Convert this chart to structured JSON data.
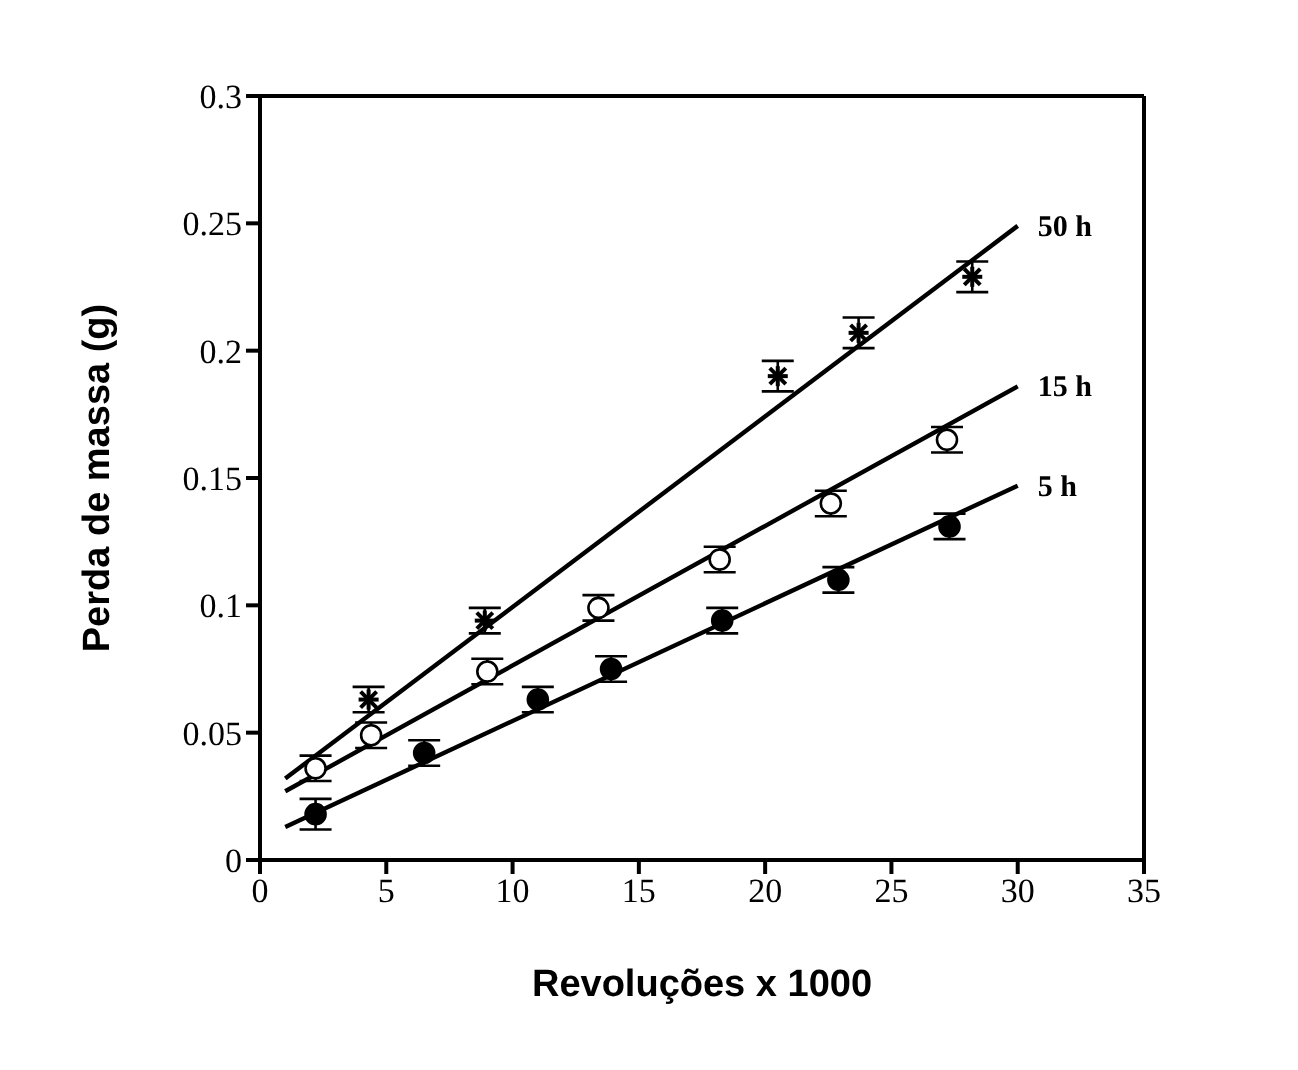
{
  "chart_data": {
    "type": "scatter",
    "xlabel": "Revoluções x 1000",
    "ylabel": "Perda de massa (g)",
    "xlim": [
      0,
      35
    ],
    "xticks": [
      0,
      5,
      10,
      15,
      20,
      25,
      30,
      35
    ],
    "ylim": [
      0,
      0.3
    ],
    "yticks": [
      0,
      0.05,
      0.1,
      0.15,
      0.2,
      0.25,
      0.3
    ],
    "grid": false,
    "legend": false,
    "series": [
      {
        "marker": "cross",
        "color": "#000000",
        "x": [
          4.3,
          8.9,
          20.5,
          23.7,
          28.2
        ],
        "values": [
          0.063,
          0.094,
          0.19,
          0.207,
          0.229
        ],
        "errors": [
          0.005,
          0.005,
          0.006,
          0.006,
          0.006
        ]
      },
      {
        "marker": "circle",
        "color": "#ffffff",
        "x": [
          2.2,
          4.4,
          9.0,
          13.4,
          18.2,
          22.6,
          27.2
        ],
        "values": [
          0.036,
          0.049,
          0.074,
          0.099,
          0.118,
          0.14,
          0.165
        ],
        "errors": [
          0.005,
          0.005,
          0.005,
          0.005,
          0.005,
          0.005,
          0.005
        ]
      },
      {
        "marker": "circle",
        "color": "#000000",
        "x": [
          2.2,
          6.5,
          11.0,
          13.9,
          18.3,
          22.9,
          27.3
        ],
        "values": [
          0.018,
          0.042,
          0.063,
          0.075,
          0.094,
          0.11,
          0.131
        ],
        "errors": [
          0.006,
          0.005,
          0.005,
          0.005,
          0.005,
          0.005,
          0.005
        ]
      },
      {
        "type": "line",
        "name": "50 h",
        "marker": "none",
        "color": "#000000",
        "x": [
          1,
          30
        ],
        "values": [
          0.032,
          0.249
        ]
      },
      {
        "type": "line",
        "name": "15 h",
        "marker": "none",
        "color": "#000000",
        "x": [
          1,
          30
        ],
        "values": [
          0.027,
          0.186
        ]
      },
      {
        "type": "line",
        "name": "5 h",
        "marker": "none",
        "color": "#000000",
        "x": [
          1,
          30
        ],
        "values": [
          0.013,
          0.147
        ]
      }
    ]
  }
}
